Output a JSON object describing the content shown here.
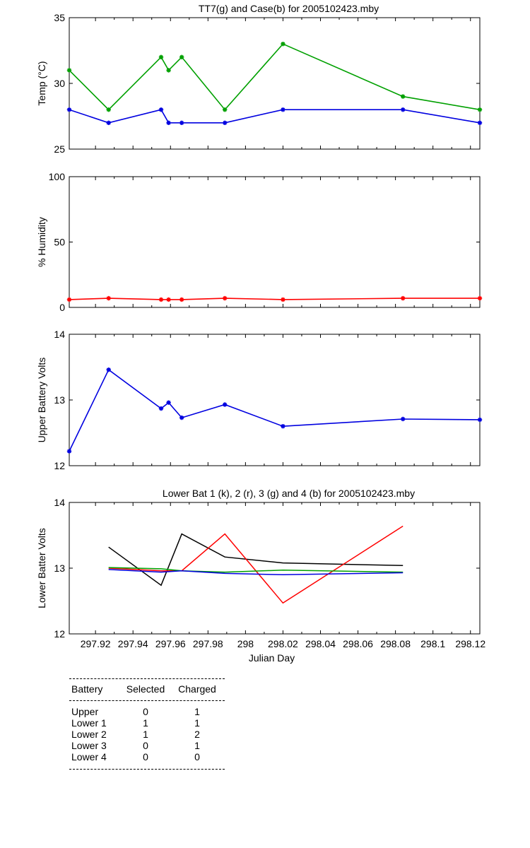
{
  "chart_data": [
    {
      "type": "line",
      "title": "TT7(g) and Case(b) for 2005102423.mby",
      "ylabel": "Temp  (°C)",
      "xlabel": "",
      "xlim": [
        297.906,
        298.125
      ],
      "ylim": [
        25,
        35
      ],
      "yticks": [
        25,
        30,
        35
      ],
      "grid": false,
      "series": [
        {
          "color": "#00a000",
          "markers": true,
          "x": [
            297.906,
            297.927,
            297.955,
            297.959,
            297.966,
            297.989,
            298.02,
            298.084,
            298.125
          ],
          "y": [
            31,
            28,
            32,
            31,
            32,
            28,
            33,
            29,
            28
          ]
        },
        {
          "color": "#0000e0",
          "markers": true,
          "x": [
            297.906,
            297.927,
            297.955,
            297.959,
            297.966,
            297.989,
            298.02,
            298.084,
            298.125
          ],
          "y": [
            28,
            27,
            28,
            27,
            27,
            27,
            28,
            28,
            27
          ]
        }
      ]
    },
    {
      "type": "line",
      "title": "",
      "ylabel": "% Humidity",
      "xlabel": "",
      "xlim": [
        297.906,
        298.125
      ],
      "ylim": [
        0,
        100
      ],
      "yticks": [
        0,
        50,
        100
      ],
      "grid": false,
      "series": [
        {
          "color": "#ff0000",
          "markers": true,
          "x": [
            297.906,
            297.927,
            297.955,
            297.959,
            297.966,
            297.989,
            298.02,
            298.084,
            298.125
          ],
          "y": [
            6,
            7,
            6,
            6,
            6,
            7,
            6,
            7,
            7
          ]
        }
      ]
    },
    {
      "type": "line",
      "title": "",
      "ylabel": "Upper Battery Volts",
      "xlabel": "",
      "xlim": [
        297.906,
        298.125
      ],
      "ylim": [
        12,
        14
      ],
      "yticks": [
        12,
        13,
        14
      ],
      "grid": false,
      "series": [
        {
          "color": "#0000e0",
          "markers": true,
          "x": [
            297.906,
            297.927,
            297.955,
            297.959,
            297.966,
            297.989,
            298.02,
            298.084,
            298.125
          ],
          "y": [
            12.22,
            13.46,
            12.87,
            12.96,
            12.73,
            12.93,
            12.6,
            12.71,
            12.7
          ]
        }
      ]
    },
    {
      "type": "line",
      "title": "Lower Bat 1 (k), 2 (r), 3 (g) and 4 (b) for 2005102423.mby",
      "ylabel": "Lower Batter Volts",
      "xlabel": "Julian Day",
      "xlim": [
        297.906,
        298.125
      ],
      "ylim": [
        12,
        14
      ],
      "yticks": [
        12,
        13,
        14
      ],
      "xticks": [
        297.92,
        297.94,
        297.96,
        297.98,
        298,
        298.02,
        298.04,
        298.06,
        298.08,
        298.1,
        298.12
      ],
      "xticklabels": [
        "297.92",
        "297.94",
        "297.96",
        "297.98",
        "298",
        "298.02",
        "298.04",
        "298.06",
        "298.08",
        "298.1",
        "298.12"
      ],
      "grid": false,
      "series": [
        {
          "color": "#000000",
          "markers": false,
          "x": [
            297.927,
            297.955,
            297.966,
            297.989,
            298.02,
            298.084
          ],
          "y": [
            13.32,
            12.74,
            13.52,
            13.17,
            13.08,
            13.04
          ]
        },
        {
          "color": "#ff0000",
          "markers": false,
          "x": [
            297.927,
            297.955,
            297.966,
            297.989,
            298.02,
            298.084
          ],
          "y": [
            13.0,
            12.96,
            12.96,
            13.52,
            12.47,
            13.64
          ]
        },
        {
          "color": "#00a000",
          "markers": false,
          "x": [
            297.927,
            297.955,
            297.966,
            297.989,
            298.02,
            298.084
          ],
          "y": [
            13.01,
            12.99,
            12.96,
            12.94,
            12.97,
            12.94
          ]
        },
        {
          "color": "#0000e0",
          "markers": false,
          "x": [
            297.927,
            297.955,
            297.966,
            297.989,
            298.02,
            298.084
          ],
          "y": [
            12.98,
            12.94,
            12.96,
            12.92,
            12.9,
            12.93
          ]
        }
      ]
    }
  ],
  "battery_table": {
    "headers": [
      "Battery",
      "Selected",
      "Charged"
    ],
    "rows": [
      {
        "battery": "Upper",
        "selected": "0",
        "charged": "1"
      },
      {
        "battery": "Lower 1",
        "selected": "1",
        "charged": "1"
      },
      {
        "battery": "Lower 2",
        "selected": "1",
        "charged": "2"
      },
      {
        "battery": "Lower 3",
        "selected": "0",
        "charged": "1"
      },
      {
        "battery": "Lower 4",
        "selected": "0",
        "charged": "0"
      }
    ]
  }
}
